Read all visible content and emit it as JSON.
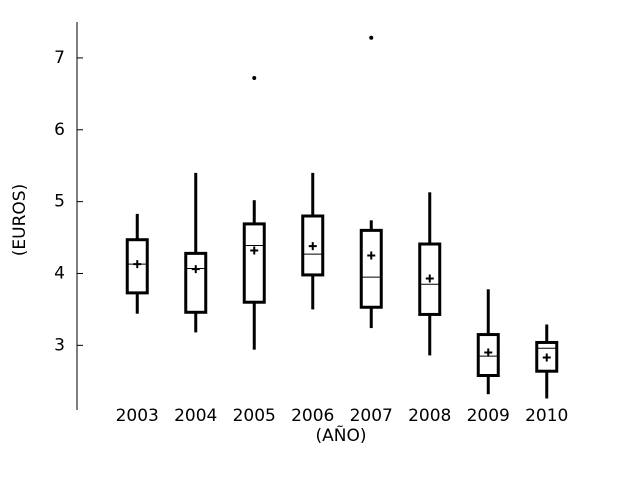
{
  "chart_data": {
    "type": "box",
    "x_label": "(AÑO)",
    "y_label": "(EUROS)",
    "categories": [
      "2003",
      "2004",
      "2005",
      "2006",
      "2007",
      "2008",
      "2009",
      "2010"
    ],
    "low": [
      3.44,
      3.18,
      2.94,
      3.5,
      3.24,
      2.86,
      2.32,
      2.26
    ],
    "q1": [
      3.73,
      3.46,
      3.6,
      3.98,
      3.53,
      3.43,
      2.58,
      2.64
    ],
    "median": [
      4.13,
      4.07,
      4.39,
      4.27,
      3.95,
      3.85,
      2.85,
      2.96
    ],
    "q3": [
      4.47,
      4.28,
      4.69,
      4.8,
      4.6,
      4.41,
      3.15,
      3.04
    ],
    "high": [
      4.83,
      5.4,
      5.02,
      5.4,
      4.74,
      5.13,
      3.78,
      3.29
    ],
    "mean": [
      4.13,
      4.06,
      4.32,
      4.38,
      4.25,
      3.93,
      2.9,
      2.83
    ],
    "outliers": [
      [],
      [],
      [
        6.72
      ],
      [],
      [
        7.28
      ],
      [],
      [],
      []
    ],
    "color": "#000000",
    "ylim": [
      2.1,
      7.5
    ],
    "yticks": [
      3,
      4,
      5,
      6,
      7
    ]
  }
}
